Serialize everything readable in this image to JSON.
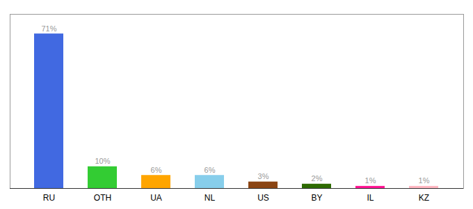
{
  "chart_data": {
    "type": "bar",
    "categories": [
      "RU",
      "OTH",
      "UA",
      "NL",
      "US",
      "BY",
      "IL",
      "KZ"
    ],
    "values": [
      71,
      10,
      6,
      6,
      3,
      2,
      1,
      1
    ],
    "value_labels": [
      "71%",
      "10%",
      "6%",
      "6%",
      "3%",
      "2%",
      "1%",
      "1%"
    ],
    "colors": [
      "#4169E1",
      "#33CC33",
      "#FFA500",
      "#87CEEB",
      "#8B4513",
      "#2D6A00",
      "#FF1493",
      "#FFB6C1"
    ],
    "ylim": [
      0,
      80
    ],
    "data_labels": true,
    "tick_labels": "x",
    "grid": false
  }
}
